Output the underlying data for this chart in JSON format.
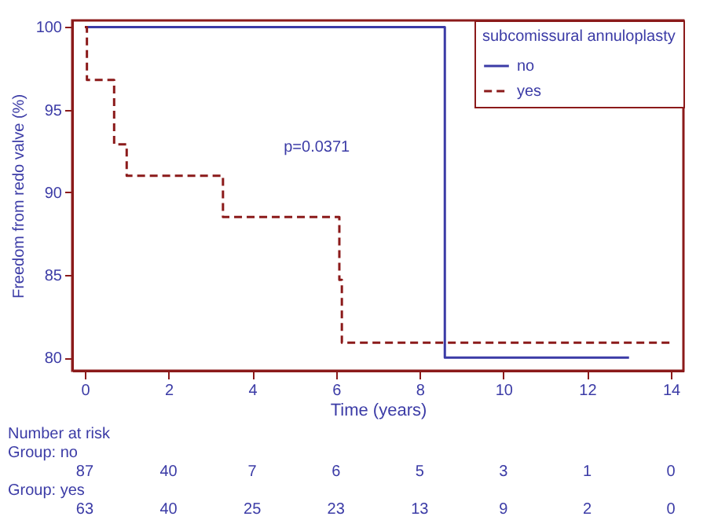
{
  "chart_data": {
    "type": "step",
    "xlabel": "Time (years)",
    "ylabel": "Freedom from redo valve (%)",
    "legend_title": "subcomissural annuloplasty",
    "legend": "top right",
    "grid": false,
    "xlim": [
      -0.3,
      14.3
    ],
    "ylim": [
      79.2,
      100.4
    ],
    "xticks": [
      0,
      2,
      4,
      6,
      8,
      10,
      12,
      14
    ],
    "yticks": [
      80,
      85,
      90,
      95,
      100
    ],
    "series": [
      {
        "name": "no",
        "color": "#3b3ba6",
        "line_style": "solid",
        "x": [
          0,
          8.6,
          13
        ],
        "values": [
          100,
          80,
          80
        ]
      },
      {
        "name": "yes",
        "color": "#8b1a1a",
        "line_style": "dashed",
        "x": [
          0,
          0.05,
          0.7,
          1.0,
          3.3,
          6.08,
          6.14,
          14
        ],
        "values": [
          100,
          96.8,
          92.9,
          91.0,
          88.5,
          84.7,
          80.9,
          80.9
        ]
      }
    ],
    "annotations": [
      "p=0.0371",
      "Number at risk",
      "Group: no",
      "87",
      "40",
      "7",
      "6",
      "5",
      "3",
      "1",
      "0",
      "Group: yes",
      "63",
      "40",
      "25",
      "23",
      "13",
      "9",
      "2",
      "0"
    ]
  }
}
